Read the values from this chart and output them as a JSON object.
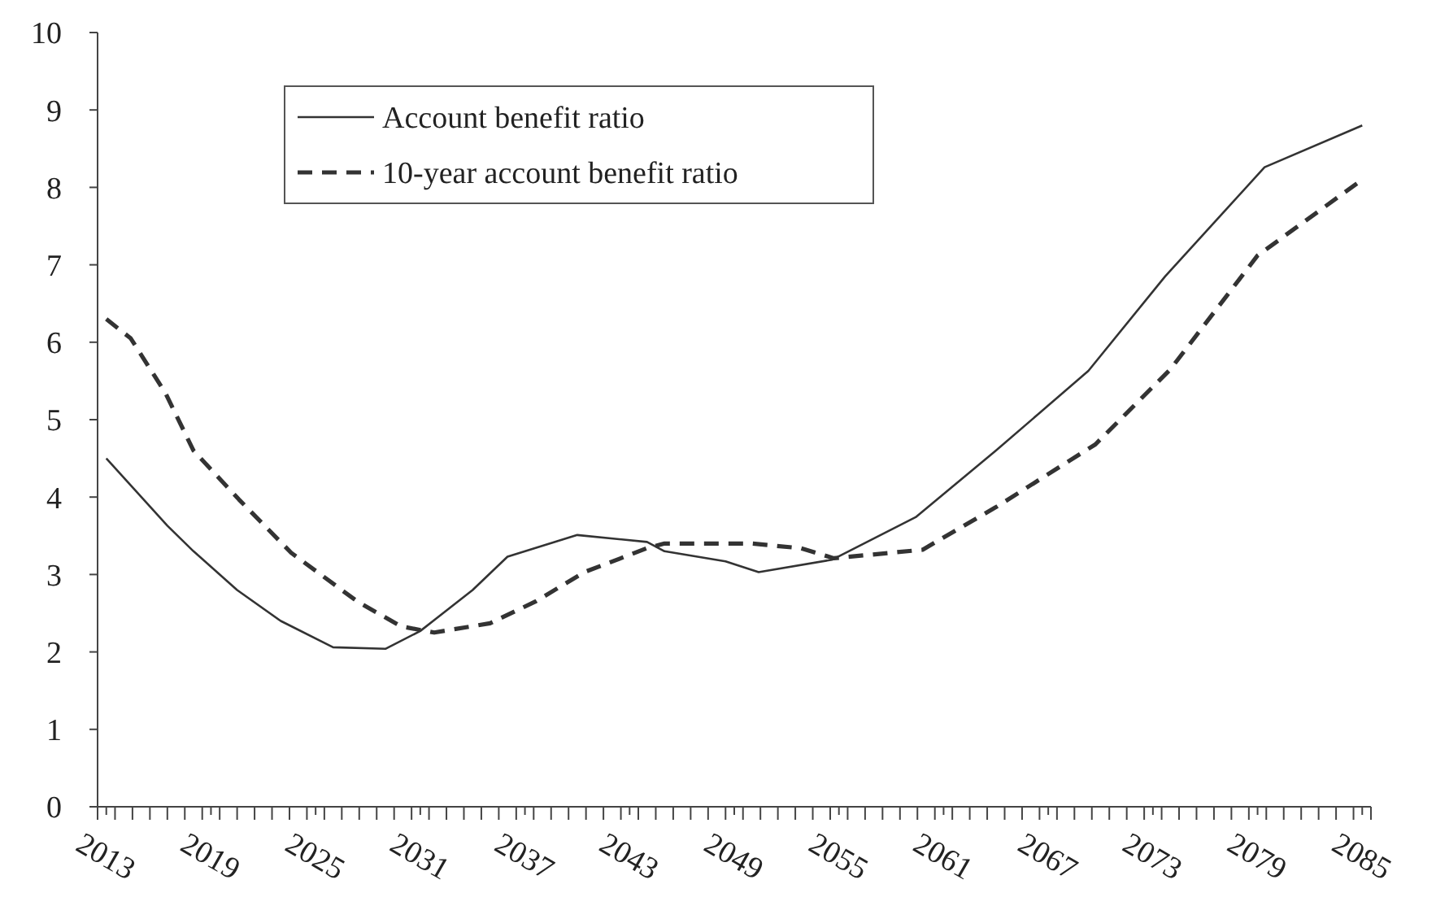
{
  "chart_data": {
    "type": "line",
    "xlim": [
      2012.5,
      2085.5
    ],
    "ylim": [
      0,
      10
    ],
    "yticks": [
      0,
      1,
      2,
      3,
      4,
      5,
      6,
      7,
      8,
      9,
      10
    ],
    "xticks": [
      2013,
      2019,
      2025,
      2031,
      2037,
      2043,
      2049,
      2055,
      2061,
      2067,
      2073,
      2079,
      2085,
      {
        "value": 2012.5,
        "label": null
      },
      {
        "value": 2013.5,
        "label": null
      },
      {
        "value": 2014.5,
        "label": null
      },
      {
        "value": 2015.5,
        "label": null
      },
      {
        "value": 2016.5,
        "label": null
      },
      {
        "value": 2017.5,
        "label": null
      },
      {
        "value": 2018.5,
        "label": null
      },
      {
        "value": 2019.5,
        "label": null
      },
      {
        "value": 2020.5,
        "label": null
      },
      {
        "value": 2021.5,
        "label": null
      },
      {
        "value": 2022.5,
        "label": null
      },
      {
        "value": 2023.5,
        "label": null
      },
      {
        "value": 2024.5,
        "label": null
      },
      {
        "value": 2025.5,
        "label": null
      },
      {
        "value": 2026.5,
        "label": null
      },
      {
        "value": 2027.5,
        "label": null
      },
      {
        "value": 2028.5,
        "label": null
      },
      {
        "value": 2029.5,
        "label": null
      },
      {
        "value": 2030.5,
        "label": null
      },
      {
        "value": 2031.5,
        "label": null
      },
      {
        "value": 2032.5,
        "label": null
      },
      {
        "value": 2033.5,
        "label": null
      },
      {
        "value": 2034.5,
        "label": null
      },
      {
        "value": 2035.5,
        "label": null
      },
      {
        "value": 2036.5,
        "label": null
      },
      {
        "value": 2037.5,
        "label": null
      },
      {
        "value": 2038.5,
        "label": null
      },
      {
        "value": 2039.5,
        "label": null
      },
      {
        "value": 2040.5,
        "label": null
      },
      {
        "value": 2041.5,
        "label": null
      },
      {
        "value": 2042.5,
        "label": null
      },
      {
        "value": 2043.5,
        "label": null
      },
      {
        "value": 2044.5,
        "label": null
      },
      {
        "value": 2045.5,
        "label": null
      },
      {
        "value": 2046.5,
        "label": null
      },
      {
        "value": 2047.5,
        "label": null
      },
      {
        "value": 2048.5,
        "label": null
      },
      {
        "value": 2049.5,
        "label": null
      },
      {
        "value": 2050.5,
        "label": null
      },
      {
        "value": 2051.5,
        "label": null
      },
      {
        "value": 2052.5,
        "label": null
      },
      {
        "value": 2053.5,
        "label": null
      },
      {
        "value": 2054.5,
        "label": null
      },
      {
        "value": 2055.5,
        "label": null
      },
      {
        "value": 2056.5,
        "label": null
      },
      {
        "value": 2057.5,
        "label": null
      },
      {
        "value": 2058.5,
        "label": null
      },
      {
        "value": 2059.5,
        "label": null
      },
      {
        "value": 2060.5,
        "label": null
      },
      {
        "value": 2061.5,
        "label": null
      },
      {
        "value": 2062.5,
        "label": null
      },
      {
        "value": 2063.5,
        "label": null
      },
      {
        "value": 2064.5,
        "label": null
      },
      {
        "value": 2065.5,
        "label": null
      },
      {
        "value": 2066.5,
        "label": null
      },
      {
        "value": 2067.5,
        "label": null
      },
      {
        "value": 2068.5,
        "label": null
      },
      {
        "value": 2069.5,
        "label": null
      },
      {
        "value": 2070.5,
        "label": null
      },
      {
        "value": 2071.5,
        "label": null
      },
      {
        "value": 2072.5,
        "label": null
      },
      {
        "value": 2073.5,
        "label": null
      },
      {
        "value": 2074.5,
        "label": null
      },
      {
        "value": 2075.5,
        "label": null
      },
      {
        "value": 2076.5,
        "label": null
      },
      {
        "value": 2077.5,
        "label": null
      },
      {
        "value": 2078.5,
        "label": null
      },
      {
        "value": 2079.5,
        "label": null
      },
      {
        "value": 2080.5,
        "label": null
      },
      {
        "value": 2081.5,
        "label": null
      },
      {
        "value": 2082.5,
        "label": null
      },
      {
        "value": 2083.5,
        "label": null
      },
      {
        "value": 2084.5,
        "label": null
      },
      {
        "value": 2085.5,
        "label": null
      }
    ],
    "legend": "top left",
    "grid": false,
    "marker": "none",
    "series": [
      {
        "name": "Account benefit ratio",
        "color": "#333333",
        "line_style": "solid",
        "x": [
          2013,
          2016.5,
          2018,
          2020.5,
          2023,
          2026,
          2029,
          2031,
          2034,
          2036,
          2040,
          2044,
          2045,
          2048.5,
          2050.4,
          2054.6,
          2059.4,
          2064,
          2069.3,
          2073.7,
          2079.4,
          2085
        ],
        "values": [
          4.5,
          3.63,
          3.3,
          2.8,
          2.4,
          2.06,
          2.04,
          2.27,
          2.8,
          3.23,
          3.51,
          3.42,
          3.3,
          3.17,
          3.03,
          3.19,
          3.74,
          4.6,
          5.63,
          6.85,
          8.26,
          8.8
        ]
      },
      {
        "name": "10-year account benefit ratio",
        "color": "#333333",
        "line_style": "dashed",
        "x": [
          2013,
          2014.4,
          2016.4,
          2018,
          2020.6,
          2023.6,
          2027.4,
          2029.9,
          2031.8,
          2035,
          2037.6,
          2040.4,
          2044,
          2045,
          2050,
          2052.8,
          2054.7,
          2059.8,
          2064,
          2069.7,
          2074,
          2079,
          2085
        ],
        "values": [
          6.3,
          6.05,
          5.34,
          4.6,
          3.97,
          3.28,
          2.65,
          2.33,
          2.25,
          2.37,
          2.65,
          3.03,
          3.34,
          3.4,
          3.4,
          3.34,
          3.21,
          3.32,
          3.87,
          4.68,
          5.65,
          7.12,
          8.1
        ]
      }
    ]
  }
}
